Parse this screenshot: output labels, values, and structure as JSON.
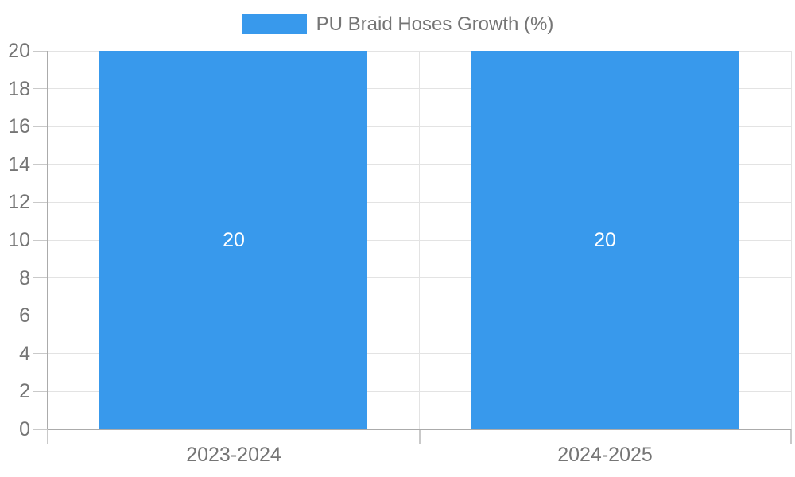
{
  "chart_data": {
    "type": "bar",
    "title": "PU Braid Hoses Growth (%)",
    "categories": [
      "2023-2024",
      "2024-2025"
    ],
    "series": [
      {
        "name": "PU Braid Hoses Growth (%)",
        "values": [
          20,
          20
        ]
      }
    ],
    "bar_labels": [
      "20",
      "20"
    ],
    "xlabel": "",
    "ylabel": "",
    "ylim": [
      0,
      20
    ],
    "ytick_step": 2,
    "ytick_labels": [
      "0",
      "2",
      "4",
      "6",
      "8",
      "10",
      "12",
      "14",
      "16",
      "18",
      "20"
    ],
    "grid": true,
    "legend_position": "top-center",
    "colors": {
      "bar": "#3899EC",
      "bar_label": "#FFFFFF",
      "axis_text": "#757575",
      "axis_line": "#ABABAB",
      "grid_line": "#E3E3E3",
      "tick_line": "#C9C9C9",
      "background": "#FFFFFF"
    }
  }
}
